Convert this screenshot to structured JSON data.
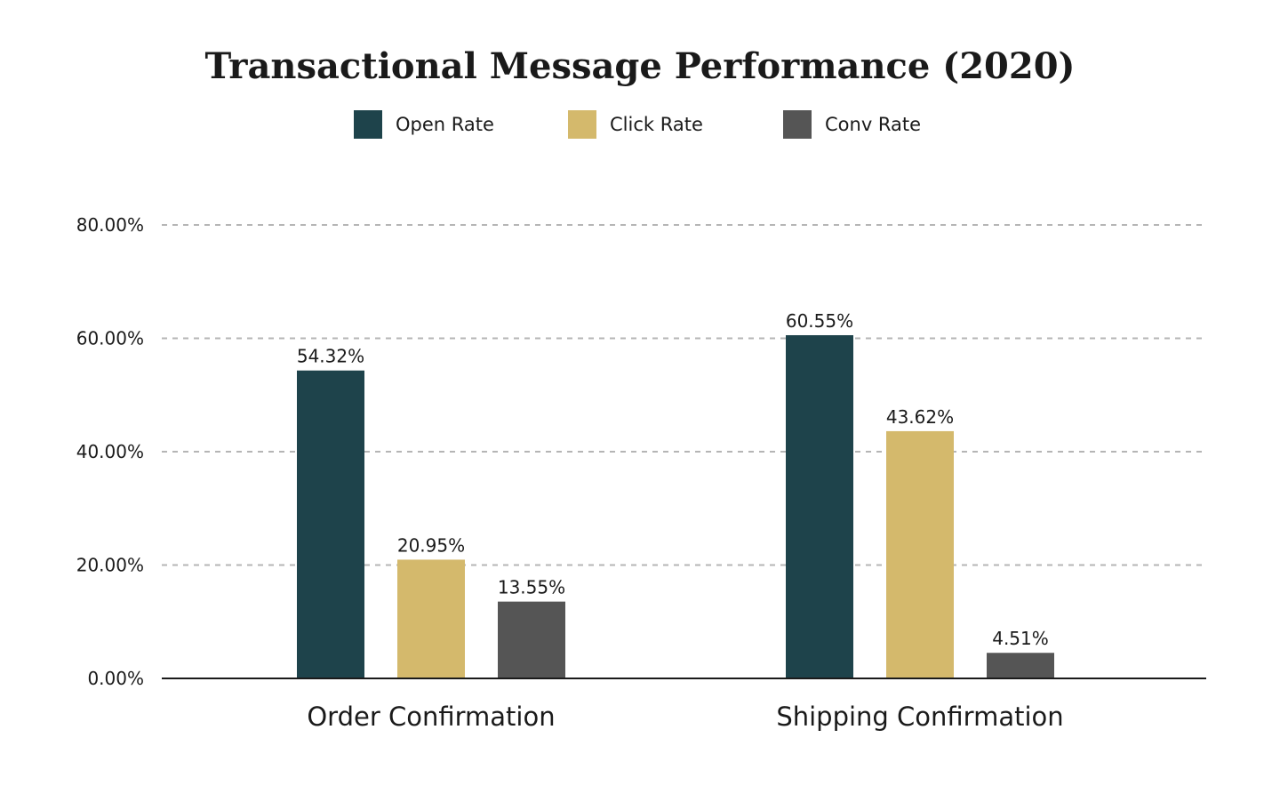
{
  "chart_data": {
    "type": "bar",
    "title": "Transactional Message Performance (2020)",
    "categories": [
      "Order Confirmation",
      "Shipping Confirmation"
    ],
    "series": [
      {
        "name": "Open Rate",
        "color": "#1e434b",
        "values": [
          54.32,
          60.55
        ],
        "labels": [
          "54.32%",
          "60.55%"
        ]
      },
      {
        "name": "Click Rate",
        "color": "#d4b96c",
        "values": [
          20.95,
          43.62
        ],
        "labels": [
          "20.95%",
          "43.62%"
        ]
      },
      {
        "name": "Conv Rate",
        "color": "#555555",
        "values": [
          13.55,
          4.51
        ],
        "labels": [
          "13.55%",
          "4.51%"
        ]
      }
    ],
    "yticks": [
      0,
      20,
      40,
      60,
      80
    ],
    "ytick_labels": [
      "0.00%",
      "20.00%",
      "40.00%",
      "60.00%",
      "80.00%"
    ],
    "ylim": [
      0,
      80
    ],
    "xlabel": "",
    "ylabel": "",
    "grid": true,
    "legend_position": "top-center"
  }
}
